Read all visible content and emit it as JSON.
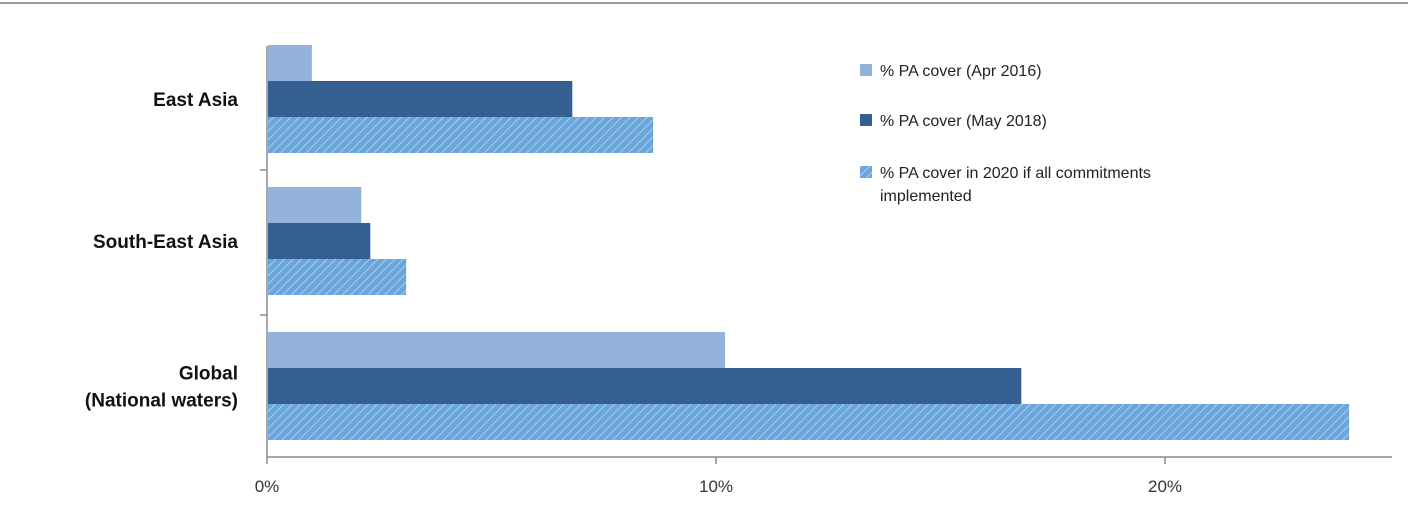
{
  "chart_data": {
    "type": "bar",
    "orientation": "horizontal",
    "title": "",
    "xlabel": "",
    "ylabel": "",
    "categories": [
      [
        "East Asia"
      ],
      [
        "South-East Asia"
      ],
      [
        "Global",
        "(National waters)"
      ]
    ],
    "series": [
      {
        "name": "% PA cover (Apr 2016)",
        "label_lines": [
          "% PA cover (Apr 2016)"
        ],
        "values": [
          1.0,
          2.1,
          10.2
        ],
        "color": "#93b3da",
        "pattern": "solid"
      },
      {
        "name": "% PA cover (May 2018)",
        "label_lines": [
          "% PA cover (May 2018)"
        ],
        "values": [
          6.8,
          2.3,
          16.8
        ],
        "color": "#365f91",
        "pattern": "solid"
      },
      {
        "name": "% PA cover in 2020 if all commitments implemented",
        "label_lines": [
          "% PA cover in 2020 if all commitments",
          "implemented"
        ],
        "values": [
          8.6,
          3.1,
          24.1
        ],
        "color": "#6aa6dc",
        "pattern": "hatched"
      }
    ],
    "xlim": [
      0,
      25
    ],
    "xticks": [
      0,
      10,
      20
    ],
    "xtick_labels": [
      "0%",
      "10%",
      "20%"
    ],
    "grid": false,
    "legend_position": "top-right"
  }
}
